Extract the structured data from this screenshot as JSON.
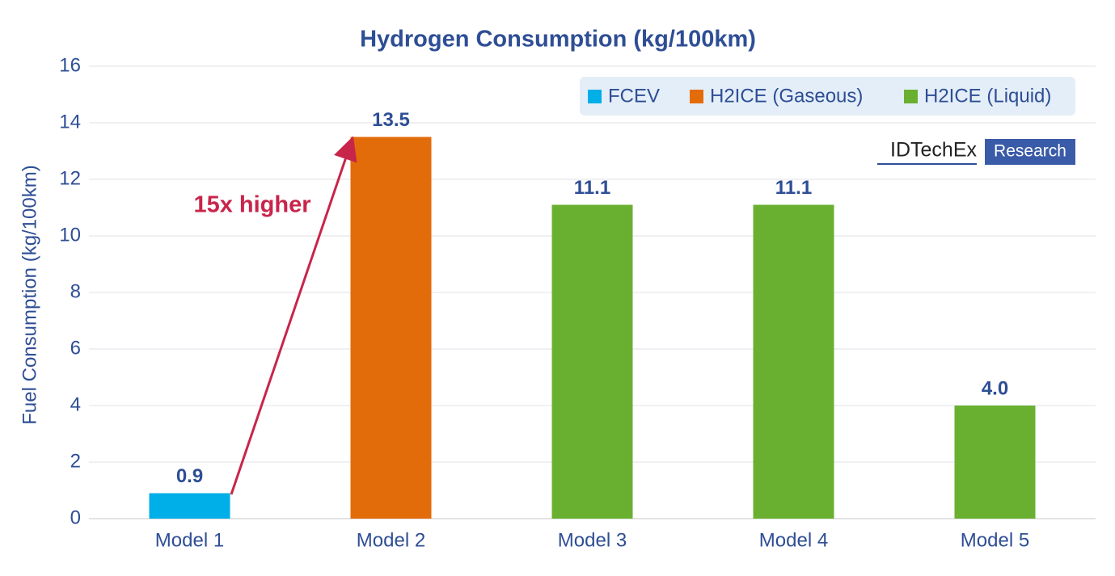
{
  "chart_data": {
    "type": "bar",
    "title": "Hydrogen Consumption (kg/100km)",
    "y_label": "Fuel Consumption (kg/100km)",
    "categories": [
      "Model 1",
      "Model 2",
      "Model 3",
      "Model 4",
      "Model 5"
    ],
    "series": [
      {
        "name": "FCEV",
        "color": "#00aee8",
        "values": [
          0.9,
          null,
          null,
          null,
          null
        ],
        "value_labels": [
          "0.9",
          null,
          null,
          null,
          null
        ]
      },
      {
        "name": "H2ICE (Gaseous)",
        "color": "#e36c0a",
        "values": [
          null,
          13.5,
          null,
          null,
          null
        ],
        "value_labels": [
          null,
          "13.5",
          null,
          null,
          null
        ]
      },
      {
        "name": "H2ICE (Liquid)",
        "color": "#6ab030",
        "values": [
          null,
          null,
          11.1,
          11.1,
          4.0
        ],
        "value_labels": [
          null,
          null,
          "11.1",
          "11.1",
          "4.0"
        ]
      }
    ],
    "ylim": [
      0,
      16
    ],
    "yticks": [
      0,
      2,
      4,
      6,
      8,
      10,
      12,
      14,
      16
    ],
    "grid": true,
    "legend": "top-right",
    "annotation": "15x higher"
  },
  "logo": {
    "name": "IDTechEx",
    "tag": "Research"
  }
}
